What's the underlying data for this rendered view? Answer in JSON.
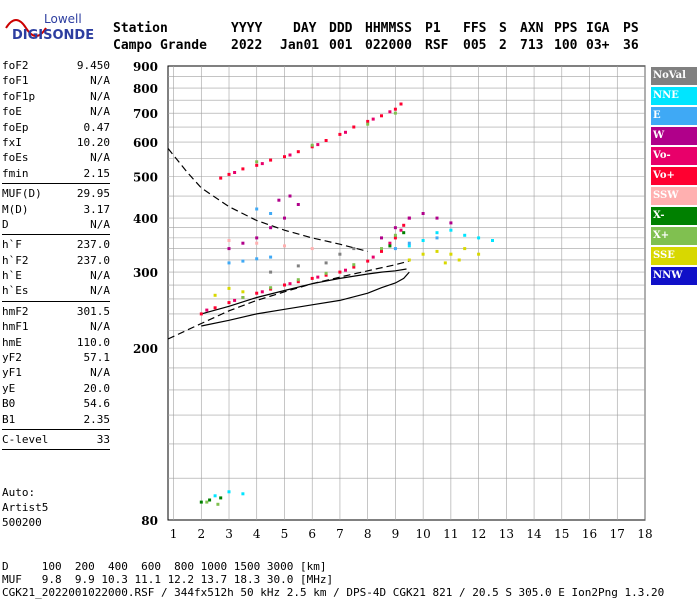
{
  "logo": {
    "line1": "Lowell",
    "line2": "DIGISONDE",
    "colors": {
      "text": "#2d3ea0",
      "wave": "#cc0000"
    }
  },
  "header": {
    "labels": [
      "Station",
      "YYYY",
      "DAY",
      "DDD",
      "HHMMSS",
      "P1",
      "FFS",
      "S",
      "AXN",
      "PPS",
      "IGA",
      "PS"
    ],
    "values": [
      "Campo Grande",
      "2022",
      "Jan01",
      "001",
      "022000",
      "RSF",
      "005",
      "2",
      "713",
      "100",
      "03+",
      "36"
    ]
  },
  "params": {
    "group1": [
      {
        "name": "foF2",
        "value": "9.450"
      },
      {
        "name": "foF1",
        "value": "N/A"
      },
      {
        "name": "foF1p",
        "value": "N/A"
      },
      {
        "name": "foE",
        "value": "N/A"
      },
      {
        "name": "foEp",
        "value": "0.47"
      },
      {
        "name": "fxI",
        "value": "10.20"
      },
      {
        "name": "foEs",
        "value": "N/A"
      },
      {
        "name": "fmin",
        "value": "2.15"
      }
    ],
    "group2": [
      {
        "name": "MUF(D)",
        "value": "29.95"
      },
      {
        "name": "M(D)",
        "value": "3.17"
      },
      {
        "name": "D",
        "value": "N/A"
      }
    ],
    "group3": [
      {
        "name": "h`F",
        "value": "237.0"
      },
      {
        "name": "h`F2",
        "value": "237.0"
      },
      {
        "name": "h`E",
        "value": "N/A"
      },
      {
        "name": "h`Es",
        "value": "N/A"
      }
    ],
    "group4": [
      {
        "name": "hmF2",
        "value": "301.5"
      },
      {
        "name": "hmF1",
        "value": "N/A"
      },
      {
        "name": "hmE",
        "value": "110.0"
      },
      {
        "name": "yF2",
        "value": "57.1"
      },
      {
        "name": "yF1",
        "value": "N/A"
      },
      {
        "name": "yE",
        "value": "20.0"
      },
      {
        "name": "B0",
        "value": "54.6"
      },
      {
        "name": "B1",
        "value": "2.35"
      }
    ],
    "group5": [
      {
        "name": "C-level",
        "value": "33"
      }
    ]
  },
  "auto": {
    "line1": "Auto:",
    "line2": "Artist5",
    "line3": "500200"
  },
  "legend": [
    {
      "label": "NoVal",
      "color": "#808080"
    },
    {
      "label": "NNE",
      "color": "#00e5ff"
    },
    {
      "label": "E",
      "color": "#3fa9f5"
    },
    {
      "label": "W",
      "color": "#b0008a"
    },
    {
      "label": "Vo-",
      "color": "#e8006a"
    },
    {
      "label": "Vo+",
      "color": "#ff0030"
    },
    {
      "label": "SSW",
      "color": "#ffb0b0"
    },
    {
      "label": "X-",
      "color": "#008000"
    },
    {
      "label": "X+",
      "color": "#80c050"
    },
    {
      "label": "SSE",
      "color": "#d8d800"
    },
    {
      "label": "NNW",
      "color": "#1010c8"
    }
  ],
  "footer": {
    "line1": "D     100  200  400  600  800 1000 1500 3000 [km]",
    "line2": "MUF   9.8  9.9 10.3 11.1 12.2 13.7 18.3 30.0 [MHz]",
    "line3": "CGK21_2022001022000.RSF / 344fx512h 50 kHz 2.5 km / DPS-4D CGK21 821 / 20.5 S 305.0 E Ion2Png 1.3.20"
  },
  "chart_data": {
    "type": "scatter",
    "title": "",
    "xlabel": "",
    "ylabel": "",
    "xlim": [
      0.8,
      18
    ],
    "ylim": [
      80,
      900
    ],
    "x_ticks": [
      1,
      2,
      3,
      4,
      5,
      6,
      7,
      8,
      9,
      10,
      11,
      12,
      13,
      14,
      15,
      16,
      17,
      18
    ],
    "y_ticks": [
      80,
      200,
      300,
      400,
      500,
      600,
      700,
      800,
      900
    ],
    "y_scale": "log",
    "grid": true,
    "series": [
      {
        "name": "Vo+",
        "color": "#ff0030",
        "points": [
          [
            2.0,
            240
          ],
          [
            2.5,
            248
          ],
          [
            3.0,
            255
          ],
          [
            3.5,
            262
          ],
          [
            4.0,
            268
          ],
          [
            4.5,
            274
          ],
          [
            5.0,
            280
          ],
          [
            5.5,
            285
          ],
          [
            6.0,
            290
          ],
          [
            6.5,
            295
          ],
          [
            7.0,
            300
          ],
          [
            7.5,
            308
          ],
          [
            8.0,
            318
          ],
          [
            8.5,
            335
          ],
          [
            9.0,
            360
          ],
          [
            9.3,
            385
          ],
          [
            2.7,
            495
          ],
          [
            3.0,
            505
          ],
          [
            3.5,
            520
          ],
          [
            4.0,
            530
          ],
          [
            4.5,
            545
          ],
          [
            5.0,
            555
          ],
          [
            5.5,
            570
          ],
          [
            6.0,
            585
          ],
          [
            6.5,
            605
          ],
          [
            7.0,
            625
          ],
          [
            7.5,
            650
          ],
          [
            8.0,
            670
          ],
          [
            8.5,
            690
          ],
          [
            9.0,
            715
          ],
          [
            9.2,
            735
          ]
        ]
      },
      {
        "name": "Vo-",
        "color": "#e8006a",
        "points": [
          [
            2.2,
            245
          ],
          [
            3.2,
            258
          ],
          [
            4.2,
            270
          ],
          [
            5.2,
            282
          ],
          [
            6.2,
            292
          ],
          [
            7.2,
            303
          ],
          [
            8.2,
            325
          ],
          [
            8.8,
            350
          ],
          [
            9.2,
            375
          ],
          [
            9.5,
            400
          ],
          [
            3.2,
            510
          ],
          [
            4.2,
            535
          ],
          [
            5.2,
            560
          ],
          [
            6.2,
            592
          ],
          [
            7.2,
            632
          ],
          [
            8.2,
            678
          ],
          [
            8.8,
            705
          ]
        ]
      },
      {
        "name": "W",
        "color": "#b0008a",
        "points": [
          [
            3.0,
            340
          ],
          [
            3.5,
            350
          ],
          [
            4.0,
            360
          ],
          [
            4.5,
            380
          ],
          [
            5.0,
            400
          ],
          [
            5.5,
            430
          ],
          [
            4.8,
            440
          ],
          [
            5.2,
            450
          ],
          [
            8.5,
            360
          ],
          [
            9.0,
            380
          ],
          [
            9.5,
            400
          ],
          [
            10.0,
            410
          ],
          [
            10.5,
            400
          ],
          [
            11.0,
            390
          ]
        ]
      },
      {
        "name": "X+",
        "color": "#80c050",
        "points": [
          [
            3.5,
            262
          ],
          [
            4.5,
            276
          ],
          [
            5.5,
            288
          ],
          [
            6.5,
            298
          ],
          [
            7.5,
            312
          ],
          [
            8.5,
            340
          ],
          [
            9.0,
            365
          ],
          [
            4.0,
            540
          ],
          [
            6.0,
            590
          ],
          [
            8.0,
            660
          ],
          [
            9.0,
            700
          ],
          [
            2.2,
            88
          ],
          [
            2.6,
            87
          ]
        ]
      },
      {
        "name": "X-",
        "color": "#008000",
        "points": [
          [
            2.0,
            88
          ],
          [
            2.3,
            89
          ],
          [
            2.7,
            90
          ],
          [
            8.8,
            345
          ],
          [
            9.3,
            370
          ]
        ]
      },
      {
        "name": "SSE",
        "color": "#d8d800",
        "points": [
          [
            2.5,
            265
          ],
          [
            3.0,
            275
          ],
          [
            3.5,
            270
          ],
          [
            9.5,
            320
          ],
          [
            10.0,
            330
          ],
          [
            10.5,
            335
          ],
          [
            11.0,
            330
          ],
          [
            11.5,
            340
          ],
          [
            12.0,
            330
          ],
          [
            10.8,
            315
          ],
          [
            11.3,
            320
          ]
        ]
      },
      {
        "name": "NNE",
        "color": "#00e5ff",
        "points": [
          [
            9.5,
            345
          ],
          [
            10.0,
            355
          ],
          [
            10.5,
            370
          ],
          [
            11.0,
            375
          ],
          [
            11.5,
            365
          ],
          [
            12.0,
            360
          ],
          [
            12.5,
            355
          ],
          [
            2.5,
            91
          ],
          [
            3.0,
            93
          ],
          [
            3.5,
            92
          ]
        ]
      },
      {
        "name": "E",
        "color": "#3fa9f5",
        "points": [
          [
            3.0,
            315
          ],
          [
            3.5,
            318
          ],
          [
            4.0,
            322
          ],
          [
            4.5,
            325
          ],
          [
            9.0,
            340
          ],
          [
            9.5,
            350
          ],
          [
            10.5,
            360
          ],
          [
            4.0,
            420
          ],
          [
            4.5,
            410
          ]
        ]
      },
      {
        "name": "SSW",
        "color": "#ffb0b0",
        "points": [
          [
            3.0,
            355
          ],
          [
            4.0,
            350
          ],
          [
            5.0,
            345
          ],
          [
            6.0,
            340
          ]
        ]
      },
      {
        "name": "NoVal",
        "color": "#808080",
        "points": [
          [
            5.5,
            310
          ],
          [
            6.5,
            315
          ],
          [
            7.0,
            330
          ],
          [
            7.5,
            340
          ],
          [
            4.5,
            300
          ]
        ]
      }
    ],
    "curves": [
      {
        "style": "solid",
        "points": [
          [
            2.0,
            240
          ],
          [
            3.0,
            250
          ],
          [
            4.0,
            262
          ],
          [
            5.0,
            272
          ],
          [
            6.0,
            282
          ],
          [
            7.0,
            290
          ],
          [
            8.0,
            297
          ],
          [
            8.5,
            300
          ],
          [
            9.0,
            302
          ],
          [
            9.4,
            305
          ]
        ]
      },
      {
        "style": "solid",
        "points": [
          [
            2.0,
            225
          ],
          [
            3.0,
            232
          ],
          [
            4.0,
            240
          ],
          [
            5.0,
            246
          ],
          [
            6.0,
            252
          ],
          [
            7.0,
            258
          ],
          [
            8.0,
            268
          ],
          [
            8.5,
            276
          ],
          [
            9.0,
            283
          ],
          [
            9.3,
            290
          ],
          [
            9.5,
            300
          ]
        ]
      },
      {
        "style": "dashed",
        "points": [
          [
            0.8,
            580
          ],
          [
            1.5,
            510
          ],
          [
            2.0,
            470
          ],
          [
            3.0,
            425
          ],
          [
            4.0,
            395
          ],
          [
            5.0,
            375
          ],
          [
            6.0,
            360
          ],
          [
            7.0,
            348
          ],
          [
            8.0,
            335
          ]
        ]
      },
      {
        "style": "dashed",
        "points": [
          [
            0.8,
            210
          ],
          [
            2.0,
            228
          ],
          [
            3.0,
            244
          ],
          [
            4.0,
            258
          ],
          [
            5.0,
            270
          ],
          [
            6.0,
            282
          ],
          [
            7.0,
            292
          ],
          [
            8.0,
            302
          ],
          [
            9.0,
            312
          ],
          [
            9.5,
            318
          ]
        ]
      }
    ]
  }
}
